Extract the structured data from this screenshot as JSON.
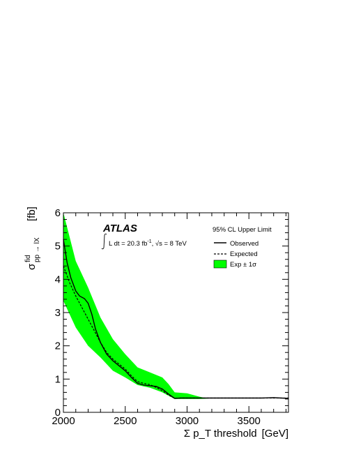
{
  "chart_data": {
    "type": "line",
    "xlabel": "Σ p_T threshold",
    "xlabel_unit": "[GeV]",
    "ylabel_main": "σ",
    "ylabel_sup": "fid",
    "ylabel_sub": "pp → lX",
    "ylabel_unit": "[fb]",
    "xlim": [
      2000,
      3820
    ],
    "ylim": [
      0,
      6
    ],
    "x_ticks": [
      2000,
      2500,
      3000,
      3500
    ],
    "y_ticks": [
      0,
      1,
      2,
      3,
      4,
      5,
      6
    ],
    "experiment_label": "ATLAS",
    "lumi_text": "L dt = 20.3 fb",
    "lumi_exp": "-1",
    "energy_text": ", √s = 8 TeV",
    "legend_title": "95% CL Upper Limit",
    "legend_position": "top-right",
    "colors": {
      "band": "#00ff00",
      "line": "#000000"
    },
    "series": [
      {
        "name": "Observed",
        "style": "solid",
        "x": [
          2000,
          2030,
          2060,
          2100,
          2130,
          2170,
          2200,
          2230,
          2260,
          2300,
          2350,
          2400,
          2450,
          2500,
          2550,
          2600,
          2650,
          2700,
          2750,
          2800,
          2850,
          2900,
          2950,
          3000,
          3100,
          3200,
          3300,
          3400,
          3500,
          3600,
          3700,
          3820
        ],
        "y": [
          5.2,
          4.5,
          4.05,
          3.65,
          3.5,
          3.42,
          3.28,
          2.95,
          2.5,
          2.1,
          1.75,
          1.55,
          1.4,
          1.25,
          1.05,
          0.87,
          0.82,
          0.8,
          0.78,
          0.7,
          0.55,
          0.42,
          0.43,
          0.43,
          0.43,
          0.43,
          0.43,
          0.43,
          0.43,
          0.43,
          0.44,
          0.42
        ]
      },
      {
        "name": "Expected",
        "style": "dashed",
        "x": [
          2000,
          2050,
          2100,
          2150,
          2200,
          2250,
          2300,
          2350,
          2400,
          2450,
          2500,
          2550,
          2600,
          2650,
          2700,
          2750,
          2800,
          2850,
          2900,
          2950,
          3000,
          3100,
          3200,
          3300,
          3400,
          3500,
          3600,
          3700,
          3820
        ],
        "y": [
          4.4,
          3.9,
          3.5,
          3.15,
          2.8,
          2.45,
          2.1,
          1.8,
          1.6,
          1.45,
          1.3,
          1.1,
          0.92,
          0.87,
          0.83,
          0.75,
          0.65,
          0.52,
          0.42,
          0.43,
          0.43,
          0.43,
          0.43,
          0.43,
          0.43,
          0.43,
          0.43,
          0.43,
          0.43
        ]
      }
    ],
    "band": {
      "name": "Exp ± 1σ",
      "x": [
        2000,
        2100,
        2200,
        2300,
        2400,
        2500,
        2600,
        2700,
        2800,
        2850,
        2900,
        3000,
        3100,
        3150,
        3200,
        3300,
        3500,
        3700,
        3820
      ],
      "upper": [
        6.0,
        4.55,
        3.75,
        2.85,
        2.2,
        1.75,
        1.35,
        1.2,
        1.05,
        0.85,
        0.6,
        0.57,
        0.47,
        0.43,
        0.43,
        0.43,
        0.43,
        0.43,
        0.43
      ],
      "lower": [
        3.35,
        2.55,
        2.0,
        1.65,
        1.25,
        1.05,
        0.82,
        0.74,
        0.6,
        0.5,
        0.4,
        0.4,
        0.4,
        0.41,
        0.43,
        0.43,
        0.43,
        0.43,
        0.43
      ]
    }
  }
}
